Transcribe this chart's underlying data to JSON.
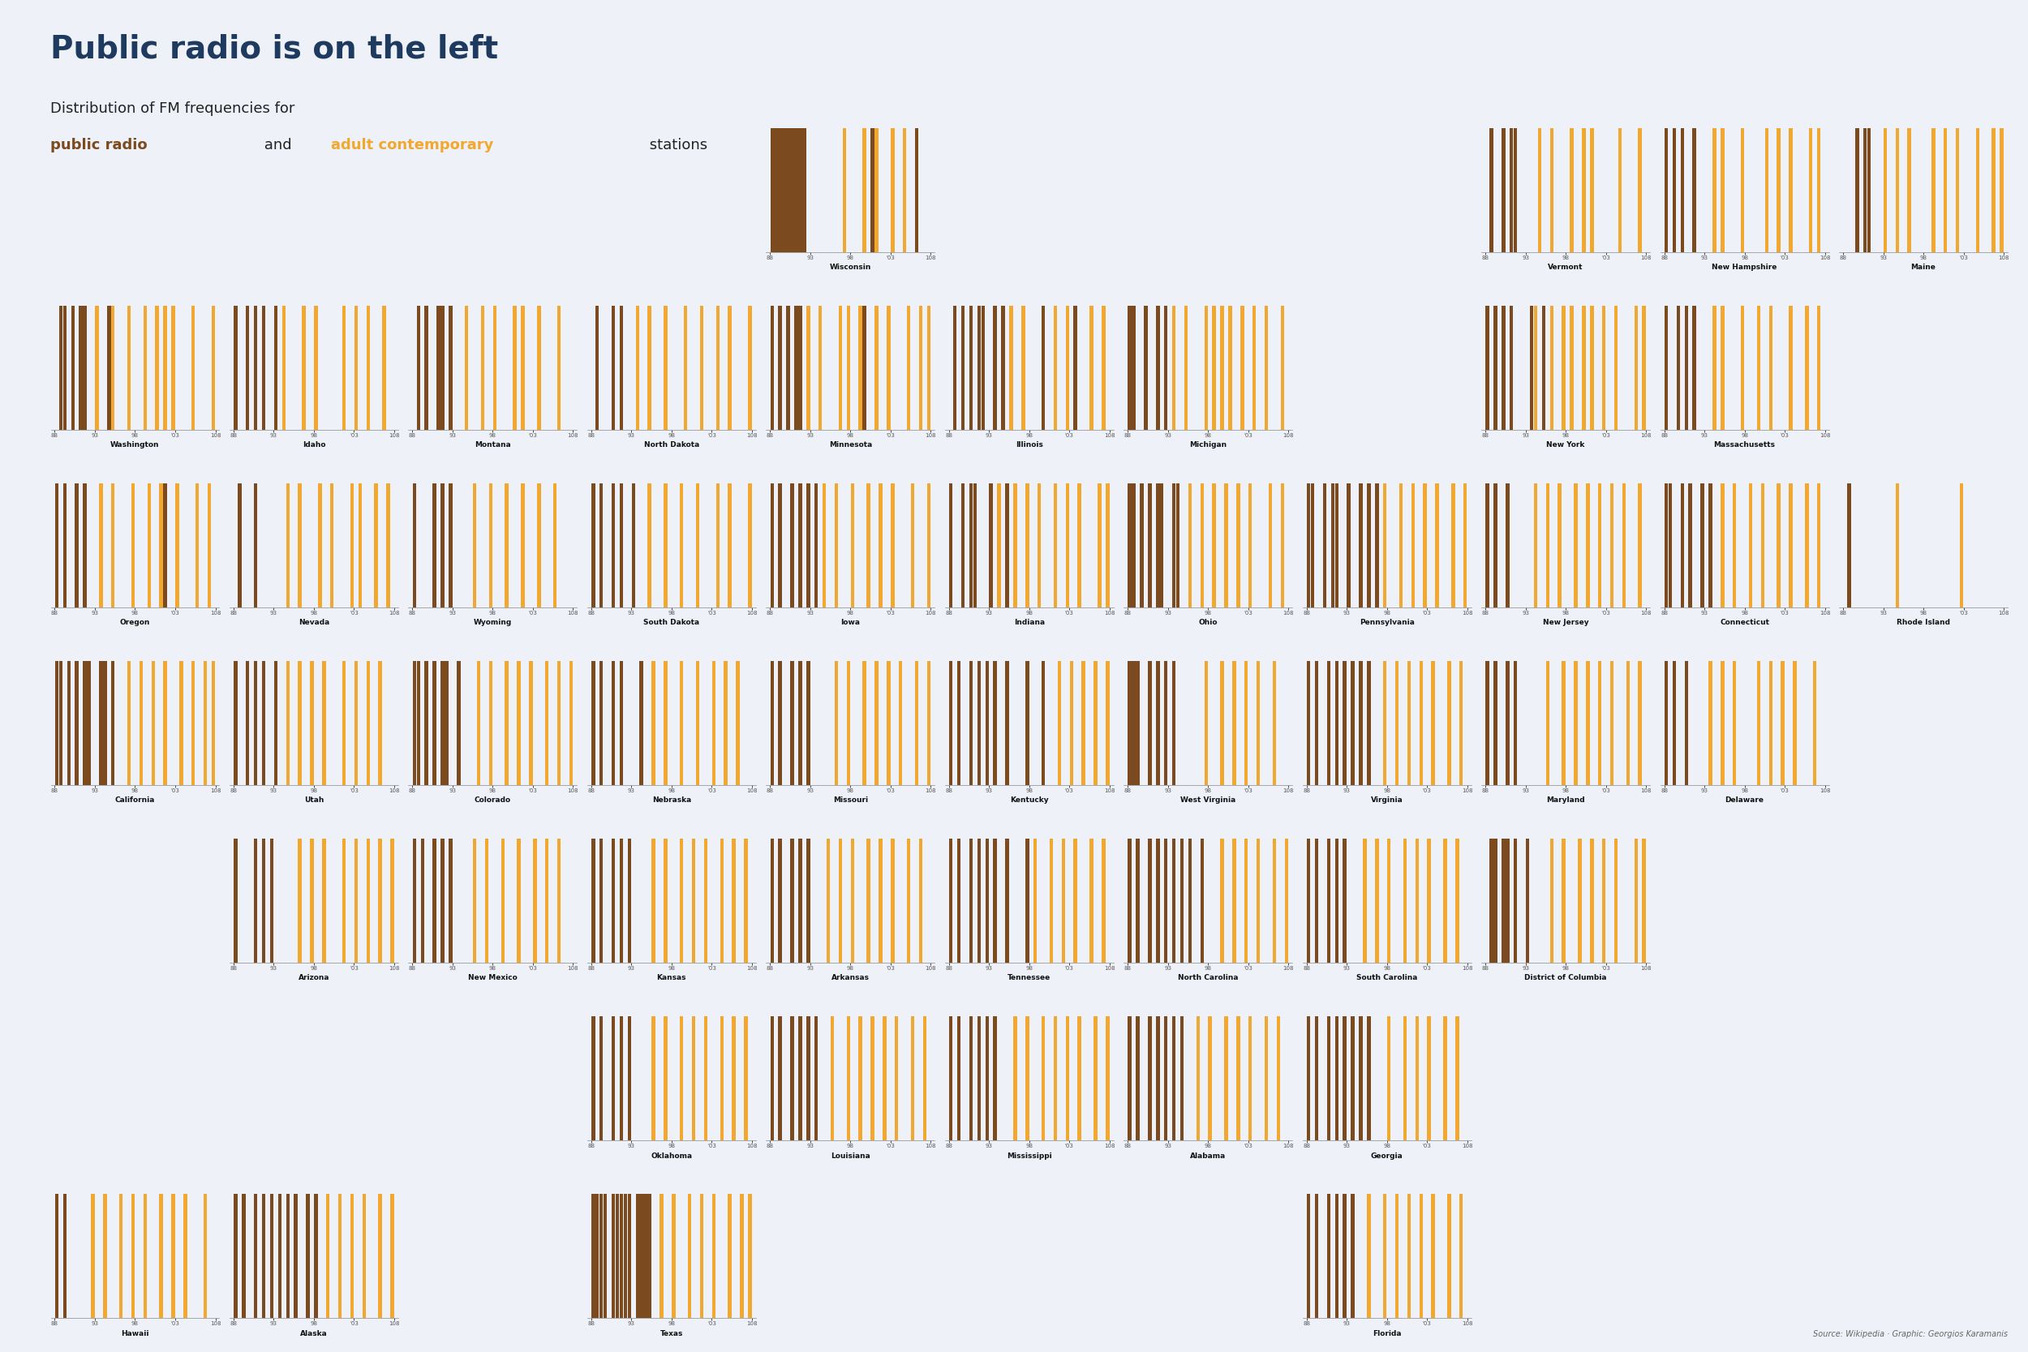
{
  "title": "Public radio is on the left",
  "subtitle_line1": "Distribution of FM frequencies for",
  "subtitle_line2_part1": "public radio",
  "subtitle_line2_and": " and ",
  "subtitle_line2_part2": "adult contemporary",
  "subtitle_line2_end": " stations",
  "source": "Source: Wikipedia · Graphic: Georgios Karamanis",
  "public_color": "#7B4A1E",
  "adult_color": "#F0A830",
  "background_color": "#EEF2F8",
  "title_color": "#1E3A5F",
  "freq_min": 88,
  "freq_max": 108,
  "bin_width": 0.5,
  "states": {
    "Wisconsin": {
      "row": 0,
      "col": 4,
      "public": [
        88,
        88.5,
        89,
        89.5,
        90,
        90.5,
        91,
        91.5,
        92,
        100.5,
        106
      ],
      "adult": [
        97,
        99.5,
        101,
        103,
        104.5,
        106.3
      ]
    },
    "Vermont": {
      "row": 0,
      "col": 8,
      "public": [
        88.7,
        90.1,
        91.1,
        91.7
      ],
      "adult": [
        94.9,
        96.1,
        98.9,
        100.1,
        101.3,
        104.7,
        107.1
      ]
    },
    "New Hampshire": {
      "row": 0,
      "col": 9,
      "public": [
        88.1,
        89.1,
        90.3,
        91.5
      ],
      "adult": [
        94.1,
        95.3,
        97.5,
        100.7,
        102.3,
        103.7,
        106.1,
        107.3
      ]
    },
    "Maine": {
      "row": 0,
      "col": 10,
      "public": [
        89.7,
        90.9,
        91.3
      ],
      "adult": [
        93.1,
        94.9,
        96.3,
        99.3,
        100.9,
        102.1,
        104.7,
        106.5,
        107.7
      ]
    },
    "Washington": {
      "row": 1,
      "col": 0,
      "public": [
        88.5,
        89.3,
        90.1,
        91.3,
        91.7,
        94.9
      ],
      "adult": [
        93.3,
        95.3,
        97.1,
        99.1,
        100.7,
        101.5,
        102.9,
        105.3,
        107.7
      ]
    },
    "Idaho": {
      "row": 1,
      "col": 1,
      "public": [
        88.3,
        89.5,
        90.7,
        91.9,
        93.1
      ],
      "adult": [
        94.1,
        96.7,
        98.3,
        101.5,
        103.1,
        104.5,
        106.7
      ]
    },
    "Montana": {
      "row": 1,
      "col": 2,
      "public": [
        88.9,
        89.9,
        91.1,
        91.7,
        92.7
      ],
      "adult": [
        94.5,
        96.5,
        98.1,
        100.5,
        101.5,
        103.5,
        106.1
      ]
    },
    "North Dakota": {
      "row": 1,
      "col": 3,
      "public": [
        88.7,
        90.5,
        91.9
      ],
      "adult": [
        93.7,
        95.1,
        97.3,
        99.5,
        101.7,
        103.9,
        105.3,
        107.7
      ]
    },
    "Minnesota": {
      "row": 1,
      "col": 4,
      "public": [
        88.3,
        89.1,
        90.3,
        91.1,
        91.5,
        99.5
      ],
      "adult": [
        92.5,
        94.3,
        96.5,
        97.7,
        99.1,
        101.3,
        102.7,
        105.1,
        106.7,
        107.9
      ]
    },
    "Illinois": {
      "row": 1,
      "col": 5,
      "public": [
        88.7,
        89.9,
        90.9,
        91.5,
        92.3,
        93.5,
        94.7,
        99.5,
        103.5
      ],
      "adult": [
        95.5,
        97.1,
        99.9,
        101.1,
        102.5,
        105.5,
        107.1
      ]
    },
    "Michigan": {
      "row": 1,
      "col": 6,
      "public": [
        88.1,
        88.9,
        90.1,
        91.7,
        92.5
      ],
      "adult": [
        93.5,
        95.3,
        97.5,
        98.5,
        99.7,
        100.9,
        102.1,
        103.5,
        105.1,
        107.3
      ]
    },
    "New York": {
      "row": 1,
      "col": 8,
      "public": [
        88.3,
        89.1,
        90.3,
        91.1,
        93.9,
        95.1
      ],
      "adult": [
        94.1,
        96.3,
        97.5,
        98.7,
        100.1,
        101.3,
        102.7,
        104.3,
        106.7,
        107.9
      ]
    },
    "Massachusetts": {
      "row": 1,
      "col": 9,
      "public": [
        88.1,
        89.7,
        90.9,
        91.5
      ],
      "adult": [
        94.1,
        95.3,
        97.7,
        99.5,
        101.3,
        103.5,
        105.7,
        107.3
      ]
    },
    "Oregon": {
      "row": 2,
      "col": 0,
      "public": [
        88.1,
        89.1,
        90.5,
        91.5,
        101.5
      ],
      "adult": [
        93.7,
        95.3,
        97.9,
        99.5,
        101.1,
        103.3,
        105.7,
        107.3
      ]
    },
    "Nevada": {
      "row": 2,
      "col": 1,
      "public": [
        88.9,
        90.5
      ],
      "adult": [
        94.5,
        96.1,
        98.7,
        100.3,
        102.5,
        103.9,
        105.5,
        107.1
      ]
    },
    "Wyoming": {
      "row": 2,
      "col": 2,
      "public": [
        88.1,
        90.5,
        91.9,
        92.9
      ],
      "adult": [
        95.5,
        97.5,
        99.5,
        101.5,
        103.5,
        105.5
      ]
    },
    "South Dakota": {
      "row": 2,
      "col": 3,
      "public": [
        88.1,
        89.3,
        90.7,
        91.9,
        93.1
      ],
      "adult": [
        95.3,
        97.1,
        99.3,
        101.1,
        103.5,
        105.3,
        107.7
      ]
    },
    "Iowa": {
      "row": 2,
      "col": 4,
      "public": [
        88.1,
        89.3,
        90.5,
        91.7,
        92.9,
        93.5
      ],
      "adult": [
        94.5,
        96.1,
        98.3,
        100.1,
        101.5,
        103.3,
        105.7,
        107.5
      ]
    },
    "Indiana": {
      "row": 2,
      "col": 5,
      "public": [
        88.3,
        89.5,
        90.7,
        91.3,
        93.1,
        95.3
      ],
      "adult": [
        94.1,
        96.3,
        97.7,
        99.1,
        101.1,
        102.5,
        104.1,
        106.5,
        107.7
      ]
    },
    "Ohio": {
      "row": 2,
      "col": 6,
      "public": [
        88.1,
        88.7,
        89.9,
        90.7,
        91.5,
        92.3,
        93.5,
        94.1
      ],
      "adult": [
        95.5,
        97.1,
        98.5,
        100.1,
        101.5,
        103.1,
        105.5,
        107.3
      ]
    },
    "Pennsylvania": {
      "row": 2,
      "col": 7,
      "public": [
        88.3,
        88.9,
        90.1,
        91.3,
        91.7,
        93.3,
        94.5,
        95.7,
        96.9
      ],
      "adult": [
        97.9,
        99.5,
        101.1,
        102.7,
        104.3,
        106.1,
        107.7
      ]
    },
    "New Jersey": {
      "row": 2,
      "col": 8,
      "public": [
        88.1,
        89.3,
        90.5
      ],
      "adult": [
        94.1,
        95.5,
        97.3,
        99.1,
        100.7,
        102.3,
        103.9,
        105.3,
        107.1
      ]
    },
    "Connecticut": {
      "row": 2,
      "col": 9,
      "public": [
        88.1,
        88.9,
        90.1,
        91.3,
        92.5,
        93.7
      ],
      "adult": [
        95.1,
        96.9,
        98.5,
        100.3,
        102.1,
        103.7,
        105.5,
        107.1
      ]
    },
    "Rhode Island": {
      "row": 2,
      "col": 10,
      "public": [
        88.5
      ],
      "adult": [
        94.7,
        102.7
      ]
    },
    "California": {
      "row": 3,
      "col": 0,
      "public": [
        88.1,
        88.9,
        89.9,
        90.7,
        91.5,
        92.3,
        93.5,
        94.1,
        95.1
      ],
      "adult": [
        97.1,
        98.7,
        100.3,
        101.9,
        103.5,
        105.1,
        106.7,
        107.9
      ]
    },
    "Utah": {
      "row": 3,
      "col": 1,
      "public": [
        88.3,
        89.5,
        90.7,
        91.9,
        93.1
      ],
      "adult": [
        94.5,
        96.1,
        97.7,
        99.3,
        101.5,
        103.1,
        104.7,
        106.3
      ]
    },
    "Colorado": {
      "row": 3,
      "col": 2,
      "public": [
        88.1,
        88.9,
        89.9,
        90.7,
        91.5,
        92.3,
        93.5
      ],
      "adult": [
        96.1,
        97.9,
        99.5,
        101.1,
        102.9,
        104.5,
        106.3,
        107.7
      ]
    },
    "Nebraska": {
      "row": 3,
      "col": 3,
      "public": [
        88.1,
        89.3,
        90.7,
        91.9,
        94.1
      ],
      "adult": [
        95.5,
        97.3,
        99.1,
        101.3,
        103.1,
        104.7,
        106.3
      ]
    },
    "Missouri": {
      "row": 3,
      "col": 4,
      "public": [
        88.1,
        89.3,
        90.5,
        91.7,
        92.9
      ],
      "adult": [
        96.3,
        97.9,
        99.5,
        101.1,
        102.7,
        104.3,
        106.1,
        107.7
      ]
    },
    "Kentucky": {
      "row": 3,
      "col": 5,
      "public": [
        88.1,
        89.3,
        90.5,
        91.7,
        92.9,
        93.5,
        95.3,
        97.5,
        99.5
      ],
      "adult": [
        101.5,
        103.1,
        104.7,
        106.3,
        107.9
      ]
    },
    "West Virginia": {
      "row": 3,
      "col": 6,
      "public": [
        88.1,
        88.7,
        89.3,
        90.5,
        91.7,
        92.9,
        93.5
      ],
      "adult": [
        97.9,
        99.5,
        101.1,
        102.7,
        104.3,
        106.1
      ]
    },
    "Virginia": {
      "row": 3,
      "col": 7,
      "public": [
        88.1,
        89.3,
        90.5,
        91.7,
        92.9,
        93.5,
        94.7,
        95.9
      ],
      "adult": [
        97.5,
        99.1,
        100.7,
        102.3,
        103.9,
        105.5,
        107.1
      ]
    },
    "Maryland": {
      "row": 3,
      "col": 8,
      "public": [
        88.1,
        89.3,
        90.5,
        91.7
      ],
      "adult": [
        95.9,
        97.5,
        99.1,
        100.7,
        102.3,
        103.9,
        105.5,
        107.1
      ]
    },
    "Delaware": {
      "row": 3,
      "col": 9,
      "public": [
        88.1,
        89.3,
        90.5
      ],
      "adult": [
        93.7,
        95.3,
        96.9,
        99.5,
        101.1,
        102.7,
        104.3,
        106.7
      ]
    },
    "Arizona": {
      "row": 4,
      "col": 1,
      "public": [
        88.1,
        90.5,
        91.9,
        92.9
      ],
      "adult": [
        96.1,
        97.7,
        99.3,
        101.5,
        103.1,
        104.7,
        106.3,
        107.9
      ]
    },
    "New Mexico": {
      "row": 4,
      "col": 2,
      "public": [
        88.1,
        89.3,
        90.5,
        91.7,
        92.9
      ],
      "adult": [
        95.5,
        97.3,
        99.1,
        101.3,
        103.1,
        104.7,
        106.3
      ]
    },
    "Kansas": {
      "row": 4,
      "col": 3,
      "public": [
        88.1,
        89.3,
        90.5,
        91.7,
        92.9
      ],
      "adult": [
        95.5,
        97.3,
        99.1,
        100.7,
        102.3,
        104.1,
        105.7,
        107.3
      ]
    },
    "Arkansas": {
      "row": 4,
      "col": 4,
      "public": [
        88.1,
        89.3,
        90.5,
        91.7,
        92.9
      ],
      "adult": [
        95.1,
        96.7,
        98.3,
        100.1,
        101.7,
        103.3,
        105.1,
        106.7
      ]
    },
    "Tennessee": {
      "row": 4,
      "col": 5,
      "public": [
        88.1,
        89.3,
        90.5,
        91.7,
        92.9,
        93.5,
        95.3,
        97.5
      ],
      "adult": [
        98.9,
        100.5,
        102.1,
        103.7,
        105.5,
        107.1
      ]
    },
    "North Carolina": {
      "row": 4,
      "col": 6,
      "public": [
        88.1,
        89.3,
        90.5,
        91.7,
        92.9,
        93.5,
        94.7,
        95.9,
        97.1
      ],
      "adult": [
        99.5,
        101.1,
        102.7,
        104.3,
        106.1,
        107.7
      ]
    },
    "South Carolina": {
      "row": 4,
      "col": 7,
      "public": [
        88.1,
        89.3,
        90.5,
        91.7,
        92.9
      ],
      "adult": [
        95.1,
        96.7,
        98.3,
        100.1,
        101.7,
        103.3,
        105.1,
        106.7
      ]
    },
    "District of Columbia": {
      "row": 4,
      "col": 8,
      "public": [
        88.5,
        89.3,
        90.1,
        90.9,
        91.7,
        93.1
      ],
      "adult": [
        96.3,
        97.9,
        99.5,
        101.1,
        102.7,
        104.3,
        106.7,
        107.9
      ]
    },
    "Oklahoma": {
      "row": 5,
      "col": 3,
      "public": [
        88.1,
        89.3,
        90.5,
        91.7,
        92.9
      ],
      "adult": [
        95.5,
        97.3,
        99.1,
        100.7,
        102.3,
        104.1,
        105.7,
        107.3
      ]
    },
    "Louisiana": {
      "row": 5,
      "col": 4,
      "public": [
        88.1,
        89.3,
        90.5,
        91.7,
        92.9,
        93.5
      ],
      "adult": [
        95.9,
        97.5,
        99.1,
        100.7,
        102.3,
        103.9,
        105.5,
        107.1
      ]
    },
    "Mississippi": {
      "row": 5,
      "col": 5,
      "public": [
        88.1,
        89.3,
        90.5,
        91.7,
        92.9,
        93.5
      ],
      "adult": [
        96.3,
        97.9,
        99.5,
        101.1,
        102.7,
        104.3,
        106.1,
        107.7
      ]
    },
    "Alabama": {
      "row": 5,
      "col": 6,
      "public": [
        88.1,
        89.3,
        90.5,
        91.7,
        92.9,
        93.5,
        94.7
      ],
      "adult": [
        96.7,
        98.3,
        100.1,
        101.7,
        103.3,
        105.1,
        106.7
      ]
    },
    "Georgia": {
      "row": 5,
      "col": 7,
      "public": [
        88.1,
        89.3,
        90.5,
        91.7,
        92.9,
        93.5,
        94.7,
        95.9
      ],
      "adult": [
        98.3,
        100.1,
        101.7,
        103.3,
        105.1,
        106.7
      ]
    },
    "Hawaii": {
      "row": 6,
      "col": 0,
      "public": [
        88.1,
        89.3
      ],
      "adult": [
        92.7,
        94.3,
        96.1,
        97.7,
        99.3,
        101.1,
        102.7,
        104.3,
        106.7
      ]
    },
    "Alaska": {
      "row": 6,
      "col": 1,
      "public": [
        88.1,
        89.3,
        90.5,
        91.7,
        92.9,
        93.5,
        94.7,
        95.9,
        97.1,
        98.3
      ],
      "adult": [
        99.5,
        101.1,
        102.7,
        104.3,
        106.1,
        107.7
      ]
    },
    "Texas": {
      "row": 6,
      "col": 3,
      "public": [
        88.1,
        88.7,
        89.3,
        89.9,
        90.5,
        91.1,
        91.7,
        92.3,
        92.9,
        93.5,
        94.1,
        94.7,
        95.3
      ],
      "adult": [
        96.7,
        98.3,
        100.1,
        101.7,
        103.3,
        105.1,
        106.7,
        107.9
      ]
    },
    "Florida": {
      "row": 6,
      "col": 7,
      "public": [
        88.1,
        89.3,
        90.5,
        91.7,
        92.9,
        93.5
      ],
      "adult": [
        95.9,
        97.5,
        99.1,
        100.7,
        102.3,
        103.9,
        105.5,
        107.1
      ]
    }
  }
}
